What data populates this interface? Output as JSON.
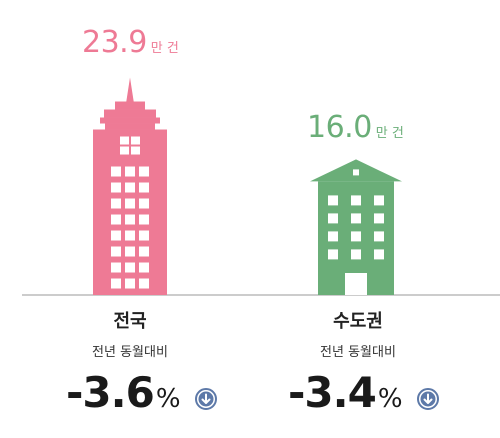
{
  "chart_data": {
    "type": "bar",
    "categories": [
      "전국",
      "수도권"
    ],
    "values": [
      23.9,
      16.0
    ],
    "value_unit": "만 건",
    "compare_label": "전년 동월대비",
    "changes": [
      -3.6,
      -3.4
    ],
    "change_unit": "%",
    "change_direction_icon": "arrow-down-circle-icon",
    "colors": {
      "전국": "#EE7A95",
      "수도권": "#6AAE78",
      "axis": "#999999",
      "icon": "#5D79A8"
    }
  }
}
